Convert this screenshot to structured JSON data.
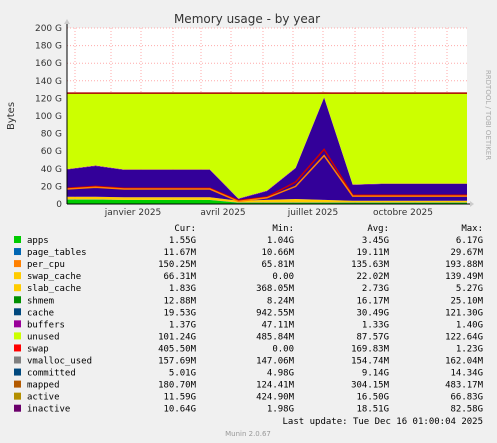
{
  "chart_data": {
    "type": "area",
    "title": "Memory usage - by year",
    "ylabel": "Bytes",
    "side_text": "RRDTOOL / TOBI OETIKER",
    "y_ticks": [
      "0",
      "20 G",
      "40 G",
      "60 G",
      "80 G",
      "100 G",
      "120 G",
      "140 G",
      "160 G",
      "180 G",
      "200 G"
    ],
    "ylim": [
      0,
      200
    ],
    "y_unit": "G",
    "x_ticks": [
      "janvier 2025",
      "avril 2025",
      "juillet 2025",
      "octobre 2025"
    ],
    "x": [
      "2024-12",
      "2025-01",
      "2025-02",
      "2025-03",
      "2025-04",
      "2025-05",
      "2025-06",
      "2025-06b",
      "2025-07",
      "2025-07b",
      "2025-08",
      "2025-09",
      "2025-10",
      "2025-11",
      "2025-12"
    ],
    "grid": true,
    "stack": [
      {
        "name": "apps",
        "color": "#00cc00",
        "values": [
          5,
          5,
          4.5,
          4.5,
          4.5,
          4.5,
          1.5,
          1.5,
          1.5,
          1.5,
          1.5,
          1.5,
          1.5,
          1.5,
          1.5
        ]
      },
      {
        "name": "page_tables",
        "color": "#0066b3",
        "values": [
          0.2,
          0.2,
          0.2,
          0.2,
          0.2,
          0.2,
          0.2,
          0.2,
          0.2,
          0.2,
          0.2,
          0.2,
          0.2,
          0.2,
          0.2
        ]
      },
      {
        "name": "slab_cache",
        "color": "#ffcc00",
        "values": [
          3,
          3,
          3,
          3,
          3,
          3,
          2,
          3,
          4,
          3,
          2,
          2,
          2,
          2,
          2
        ]
      },
      {
        "name": "cache",
        "color": "#330099",
        "values": [
          31,
          35,
          31,
          31,
          31,
          31,
          2,
          10,
          35,
          116,
          18,
          19,
          19,
          19,
          19
        ]
      },
      {
        "name": "buffers",
        "color": "#990099",
        "values": [
          0.5,
          0.5,
          0.5,
          0.5,
          0.5,
          0.5,
          0.5,
          0.5,
          0.5,
          0.5,
          0.5,
          0.5,
          0.5,
          0.5,
          0.5
        ]
      },
      {
        "name": "unused",
        "color": "#ccff00",
        "values": [
          86.3,
          82.3,
          86.8,
          86.8,
          86.8,
          86.8,
          119.8,
          110.8,
          84.8,
          5.8,
          103.8,
          102.8,
          102.8,
          102.8,
          102.8
        ]
      }
    ],
    "lines": [
      {
        "name": "committed",
        "color": "#cc0000",
        "values": [
          18,
          20,
          18,
          18,
          18,
          18,
          4,
          8,
          25,
          62,
          10,
          10,
          10,
          10,
          10
        ]
      },
      {
        "name": "inactive",
        "color": "#ff8000",
        "values": [
          17,
          19,
          17,
          17,
          17,
          17,
          3,
          7,
          20,
          55,
          9,
          9,
          9,
          9,
          9
        ]
      },
      {
        "name": "total",
        "color": "#aa0000",
        "values": [
          126,
          126,
          126,
          126,
          126,
          126,
          126,
          126,
          126,
          126,
          126,
          126,
          126,
          126,
          126
        ]
      }
    ]
  },
  "legend": {
    "headers": {
      "cur": "Cur:",
      "min": "Min:",
      "avg": "Avg:",
      "max": "Max:"
    },
    "rows": [
      {
        "name": "apps",
        "color": "#00cc00",
        "cur": "1.55G",
        "min": "1.04G",
        "avg": "3.45G",
        "max": "6.17G"
      },
      {
        "name": "page_tables",
        "color": "#0066b3",
        "cur": "11.67M",
        "min": "10.66M",
        "avg": "19.11M",
        "max": "29.67M"
      },
      {
        "name": "per_cpu",
        "color": "#ff8000",
        "cur": "150.25M",
        "min": "65.81M",
        "avg": "135.63M",
        "max": "193.88M"
      },
      {
        "name": "swap_cache",
        "color": "#ffcc00",
        "cur": "66.31M",
        "min": "0.00",
        "avg": "22.02M",
        "max": "139.49M"
      },
      {
        "name": "slab_cache",
        "color": "#ffcc00",
        "cur": "1.83G",
        "min": "368.05M",
        "avg": "2.73G",
        "max": "5.27G"
      },
      {
        "name": "shmem",
        "color": "#008f00",
        "cur": "12.88M",
        "min": "8.24M",
        "avg": "16.17M",
        "max": "25.10M"
      },
      {
        "name": "cache",
        "color": "#00487d",
        "cur": "19.53G",
        "min": "942.55M",
        "avg": "30.49G",
        "max": "121.30G"
      },
      {
        "name": "buffers",
        "color": "#990099",
        "cur": "1.37G",
        "min": "47.11M",
        "avg": "1.33G",
        "max": "1.40G"
      },
      {
        "name": "unused",
        "color": "#ccff00",
        "cur": "101.24G",
        "min": "485.84M",
        "avg": "87.57G",
        "max": "122.64G"
      },
      {
        "name": "swap",
        "color": "#ff0000",
        "cur": "405.50M",
        "min": "0.00",
        "avg": "169.83M",
        "max": "1.23G"
      },
      {
        "name": "vmalloc_used",
        "color": "#808080",
        "cur": "157.69M",
        "min": "147.06M",
        "avg": "154.74M",
        "max": "162.04M"
      },
      {
        "name": "committed",
        "color": "#00487d",
        "cur": "5.01G",
        "min": "4.98G",
        "avg": "9.14G",
        "max": "14.34G"
      },
      {
        "name": "mapped",
        "color": "#b35a00",
        "cur": "180.70M",
        "min": "124.41M",
        "avg": "304.15M",
        "max": "483.17M"
      },
      {
        "name": "active",
        "color": "#b38f00",
        "cur": "11.59G",
        "min": "424.90M",
        "avg": "16.50G",
        "max": "66.83G"
      },
      {
        "name": "inactive",
        "color": "#6b006b",
        "cur": "10.64G",
        "min": "1.98G",
        "avg": "18.51G",
        "max": "82.58G"
      }
    ]
  },
  "last_update": "Last update: Tue Dec 16 01:00:04 2025",
  "footer": "Munin 2.0.67"
}
